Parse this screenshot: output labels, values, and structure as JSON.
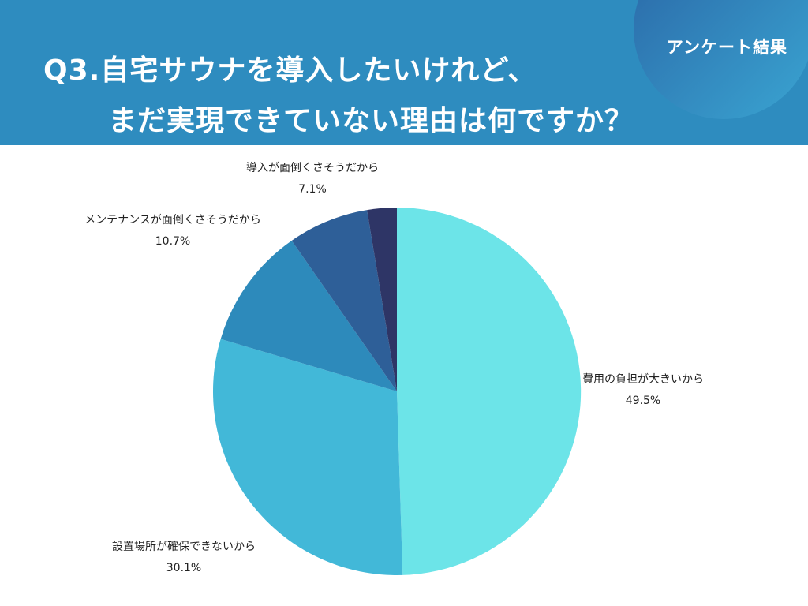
{
  "header": {
    "badge": "アンケート結果",
    "title_line1": "Q3.自宅サウナを導入したいけれど、",
    "title_line2": "まだ実現できていない理由は何ですか？"
  },
  "colors": {
    "header_bg": "#2e8cbf",
    "badge_gradient": [
      "#2a66a6",
      "#3aa5d2"
    ]
  },
  "chart_data": {
    "type": "pie",
    "start": "12 o'clock",
    "direction": "clockwise",
    "slices": [
      {
        "label": "費用の負担が大きいから",
        "value": 49.5,
        "value_label": "49.5%",
        "color": "#6ce4e8"
      },
      {
        "label": "設置場所が確保できないから",
        "value": 30.1,
        "value_label": "30.1%",
        "color": "#42b8d8"
      },
      {
        "label": "メンテナンスが面倒くさそうだから",
        "value": 10.7,
        "value_label": "10.7%",
        "color": "#2d8abb"
      },
      {
        "label": "導入が面倒くさそうだから",
        "value": 7.1,
        "value_label": "7.1%",
        "color": "#2e5f98"
      },
      {
        "label": "",
        "value": 2.6,
        "value_label": "",
        "color": "#2e3566"
      }
    ]
  }
}
